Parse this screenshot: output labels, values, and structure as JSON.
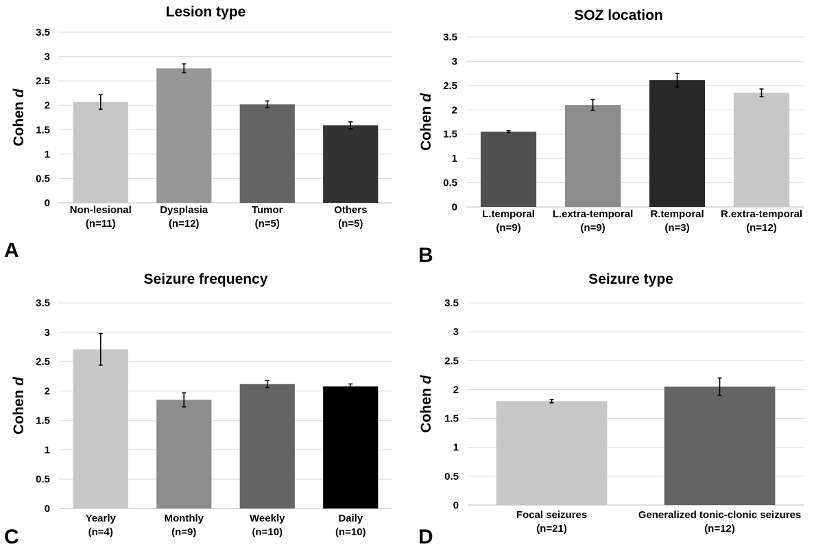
{
  "chart_data": [
    {
      "type": "bar",
      "panel": "A",
      "title": "Lesion type",
      "ylabel": "Cohen d",
      "ylim": [
        0,
        3.5
      ],
      "yticks": [
        "0",
        "0.5",
        "1",
        "1.5",
        "2",
        "2.5",
        "3",
        "3.5"
      ],
      "grid": true,
      "categories": [
        {
          "name": "Non-lesional",
          "n": "(n=11)"
        },
        {
          "name": "Dysplasia",
          "n": "(n=12)"
        },
        {
          "name": "Tumor",
          "n": "(n=5)"
        },
        {
          "name": "Others",
          "n": "(n=5)"
        }
      ],
      "values": [
        2.07,
        2.76,
        2.02,
        1.59
      ],
      "errors": [
        0.15,
        0.09,
        0.07,
        0.07
      ],
      "colors": [
        "#c8c8c8",
        "#969696",
        "#646464",
        "#323232"
      ]
    },
    {
      "type": "bar",
      "panel": "B",
      "title": "SOZ location",
      "ylabel": "Cohen d",
      "ylim": [
        0,
        3.5
      ],
      "yticks": [
        "0",
        "0.5",
        "1",
        "1.5",
        "2",
        "2.5",
        "3",
        "3.5"
      ],
      "grid": true,
      "categories": [
        {
          "name": "L.temporal",
          "n": "(n=9)"
        },
        {
          "name": "L.extra-temporal",
          "n": "(n=9)"
        },
        {
          "name": "R.temporal",
          "n": "(n=3)"
        },
        {
          "name": "R.extra-temporal",
          "n": "(n=12)"
        }
      ],
      "values": [
        1.55,
        2.1,
        2.61,
        2.35
      ],
      "errors": [
        0.02,
        0.11,
        0.14,
        0.08
      ],
      "colors": [
        "#505050",
        "#8c8c8c",
        "#282828",
        "#c8c8c8"
      ]
    },
    {
      "type": "bar",
      "panel": "C",
      "title": "Seizure frequency",
      "ylabel": "Cohen d",
      "ylim": [
        0,
        3.5
      ],
      "yticks": [
        "0",
        "0.5",
        "1",
        "1.5",
        "2",
        "2.5",
        "3",
        "3.5"
      ],
      "grid": true,
      "categories": [
        {
          "name": "Yearly",
          "n": "(n=4)"
        },
        {
          "name": "Monthly",
          "n": "(n=9)"
        },
        {
          "name": "Weekly",
          "n": "(n=10)"
        },
        {
          "name": "Daily",
          "n": "(n=10)"
        }
      ],
      "values": [
        2.71,
        1.85,
        2.12,
        2.08
      ],
      "errors": [
        0.27,
        0.12,
        0.06,
        0.04
      ],
      "colors": [
        "#c8c8c8",
        "#8c8c8c",
        "#646464",
        "#000000"
      ]
    },
    {
      "type": "bar",
      "panel": "D",
      "title": "Seizure type",
      "ylabel": "Cohen d",
      "ylim": [
        0,
        3.5
      ],
      "yticks": [
        "0",
        "0.5",
        "1",
        "1.5",
        "2",
        "2.5",
        "3",
        "3.5"
      ],
      "grid": true,
      "categories": [
        {
          "name": "Focal seizures",
          "n": "(n=21)"
        },
        {
          "name": "Generalized tonic-clonic seizures",
          "n": "(n=12)"
        }
      ],
      "values": [
        1.8,
        2.05
      ],
      "errors": [
        0.03,
        0.15
      ],
      "colors": [
        "#c8c8c8",
        "#646464"
      ]
    }
  ]
}
